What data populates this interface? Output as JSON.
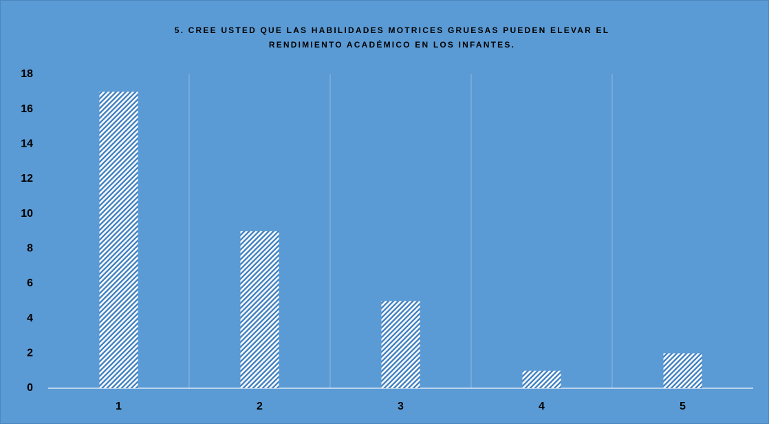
{
  "chart_data": {
    "type": "bar",
    "title": [
      "5.    CREE USTED QUE LAS HABILIDADES MOTRICES GRUESAS PUEDEN ELEVAR EL",
      "RENDIMIENTO ACADÉMICO EN LOS INFANTES."
    ],
    "categories": [
      "1",
      "2",
      "3",
      "4",
      "5"
    ],
    "values": [
      17,
      9,
      5,
      1,
      2
    ],
    "color": "#ffffff",
    "background": "#5b9bd5",
    "ylim": [
      0,
      18
    ],
    "yticks": [
      0,
      2,
      4,
      6,
      8,
      10,
      12,
      14,
      16,
      18
    ],
    "grid": false,
    "xgrid": true
  }
}
